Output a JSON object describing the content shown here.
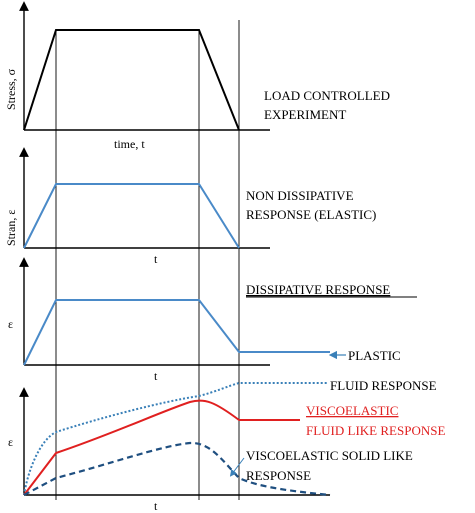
{
  "colors": {
    "stress": "#000000",
    "strain": "#4a8ac8",
    "viscoelastic_fluid": "#e02020",
    "fluid": "#3a80b8",
    "viscoelastic_solid": "#1f4f80",
    "label_red": "#e02020"
  },
  "panel1": {
    "ylabel": "Stress, σ",
    "xlabel": "time, t",
    "description_line1": "LOAD CONTROLLED",
    "description_line2": "EXPERIMENT"
  },
  "panel2": {
    "ylabel": "Stran, ε",
    "xlabel": "t",
    "description_line1": "NON DISSIPATIVE",
    "description_line2": "RESPONSE (ELASTIC)"
  },
  "panel3": {
    "ylabel": "ε",
    "xlabel": "t",
    "title": "DISSIPATIVE RESPONSE",
    "plastic_label": "PLASTIC"
  },
  "panel4": {
    "ylabel": "ε",
    "xlabel": "t",
    "fluid_label": "FLUID RESPONSE",
    "viscoelastic_fluid_line1": "VISCOELASTIC",
    "viscoelastic_fluid_line2": "FLUID LIKE RESPONSE",
    "viscoelastic_solid_line1": "VISCOELASTIC SOLID LIKE",
    "viscoelastic_solid_line2": "RESPONSE"
  }
}
